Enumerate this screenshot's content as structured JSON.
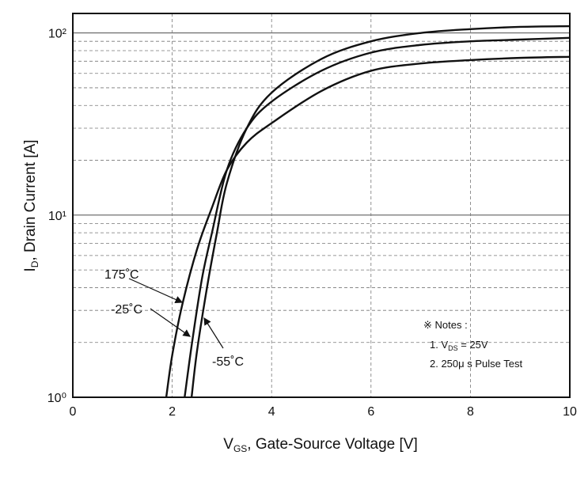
{
  "chart_data": {
    "type": "line",
    "x_label": {
      "main": "V",
      "sub": "GS",
      "rest": ", Gate-Source Voltage [V]"
    },
    "y_label": {
      "main": "I",
      "sub": "D",
      "rest": ", Drain Current [A]"
    },
    "log_y": true,
    "grid": true,
    "color": "#111111",
    "xlim": [
      0,
      10
    ],
    "xticks": [
      0,
      2,
      4,
      6,
      8,
      10
    ],
    "ylim": [
      1,
      128
    ],
    "yticks": [
      {
        "value": 1,
        "label": "10⁰"
      },
      {
        "value": 10,
        "label": "10¹"
      },
      {
        "value": 100,
        "label": "10²"
      }
    ],
    "minor_yticks": [
      2,
      3,
      4,
      5,
      6,
      7,
      8,
      9,
      20,
      30,
      40,
      50,
      60,
      70,
      80,
      90
    ],
    "series": [
      {
        "name": "175˚C",
        "color": "#111111",
        "x": [
          1.88,
          2.0,
          2.2,
          2.5,
          2.8,
          3.1,
          3.5,
          4,
          5,
          6,
          7,
          8,
          9,
          10
        ],
        "values": [
          1,
          1.7,
          3.2,
          6.5,
          11,
          17.7,
          25,
          32,
          48,
          62,
          68,
          71,
          73,
          74
        ]
      },
      {
        "name": "-25˚C",
        "color": "#111111",
        "x": [
          2.25,
          2.4,
          2.6,
          2.8,
          3.1,
          3.5,
          4,
          5,
          6,
          7,
          8,
          9,
          10
        ],
        "values": [
          1,
          2,
          4.5,
          8,
          17.7,
          30,
          42,
          62,
          78,
          86,
          90,
          92,
          94
        ]
      },
      {
        "name": "-55˚C",
        "color": "#111111",
        "x": [
          2.39,
          2.5,
          2.7,
          2.9,
          3.1,
          3.5,
          4,
          5,
          6,
          7,
          8,
          9,
          10
        ],
        "values": [
          1,
          1.8,
          4,
          8,
          15,
          30,
          47,
          72,
          90,
          100,
          105,
          108,
          109
        ]
      }
    ],
    "notes": {
      "title": "※ Notes :",
      "line1": {
        "main": "1. V",
        "sub": "DS",
        "rest": " = 25V"
      },
      "line2": "2. 250μ s Pulse Test"
    }
  }
}
